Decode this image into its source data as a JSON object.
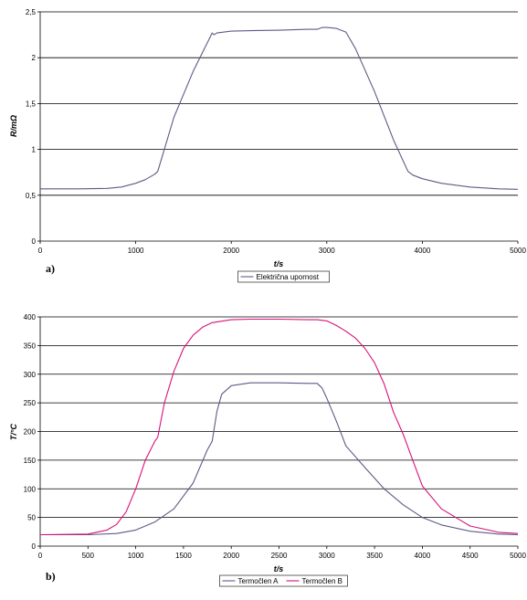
{
  "chart_data": [
    {
      "type": "line",
      "panel_label": "a)",
      "xlabel": "t/s",
      "ylabel": "R/mΩ",
      "xlim": [
        0,
        5000
      ],
      "ylim": [
        0,
        2.5
      ],
      "xticks": [
        0,
        1000,
        2000,
        3000,
        4000,
        5000
      ],
      "yticks": [
        0,
        0.5,
        1,
        1.5,
        2,
        2.5
      ],
      "ytick_labels": [
        "0",
        "0,5",
        "1",
        "1,5",
        "2",
        "2,5"
      ],
      "grid": "horizontal",
      "legend": "bottom",
      "series": [
        {
          "name": "Električna upornost",
          "color": "#5b5b86",
          "x": [
            0,
            400,
            700,
            850,
            1000,
            1100,
            1200,
            1230,
            1400,
            1600,
            1800,
            1820,
            1850,
            2000,
            2200,
            2500,
            2800,
            2900,
            2950,
            3000,
            3100,
            3200,
            3300,
            3500,
            3700,
            3850,
            3900,
            4000,
            4200,
            4500,
            4800,
            5000
          ],
          "y": [
            0.57,
            0.57,
            0.575,
            0.59,
            0.63,
            0.67,
            0.73,
            0.76,
            1.35,
            1.85,
            2.27,
            2.25,
            2.27,
            2.29,
            2.295,
            2.3,
            2.31,
            2.31,
            2.33,
            2.33,
            2.32,
            2.28,
            2.1,
            1.63,
            1.1,
            0.76,
            0.72,
            0.68,
            0.63,
            0.59,
            0.57,
            0.565
          ]
        }
      ]
    },
    {
      "type": "line",
      "panel_label": "b)",
      "xlabel": "t/s",
      "ylabel": "T/°C",
      "xlim": [
        0,
        5000
      ],
      "ylim": [
        0,
        400
      ],
      "xticks": [
        0,
        500,
        1000,
        1500,
        2000,
        2500,
        3000,
        3500,
        4000,
        4500,
        5000
      ],
      "yticks": [
        0,
        50,
        100,
        150,
        200,
        250,
        300,
        350,
        400
      ],
      "ytick_labels": [
        "0",
        "50",
        "100",
        "150",
        "200",
        "250",
        "300",
        "350",
        "400"
      ],
      "grid": "horizontal",
      "legend": "bottom",
      "series": [
        {
          "name": "Termočlen A",
          "color": "#5b5b86",
          "x": [
            0,
            500,
            800,
            1000,
            1200,
            1400,
            1600,
            1750,
            1800,
            1850,
            1900,
            2000,
            2200,
            2500,
            2800,
            2900,
            2950,
            3000,
            3100,
            3200,
            3400,
            3600,
            3800,
            4000,
            4200,
            4500,
            4800,
            5000
          ],
          "y": [
            20,
            20,
            22,
            28,
            42,
            65,
            110,
            168,
            183,
            235,
            265,
            280,
            285,
            285,
            284,
            284,
            276,
            258,
            218,
            175,
            137,
            100,
            72,
            50,
            37,
            26,
            21,
            20
          ]
        },
        {
          "name": "Termočlen B",
          "color": "#d6127a",
          "x": [
            0,
            500,
            700,
            800,
            900,
            1000,
            1100,
            1200,
            1230,
            1300,
            1400,
            1500,
            1600,
            1700,
            1800,
            2000,
            2200,
            2500,
            2800,
            2900,
            3000,
            3100,
            3200,
            3300,
            3400,
            3500,
            3600,
            3700,
            3800,
            3900,
            4000,
            4200,
            4500,
            4800,
            5000
          ],
          "y": [
            20,
            21,
            28,
            38,
            60,
            100,
            150,
            183,
            190,
            250,
            305,
            345,
            368,
            382,
            390,
            395,
            396,
            396,
            395,
            395,
            393,
            385,
            375,
            363,
            345,
            320,
            283,
            233,
            195,
            150,
            105,
            65,
            35,
            24,
            22
          ]
        }
      ]
    }
  ]
}
